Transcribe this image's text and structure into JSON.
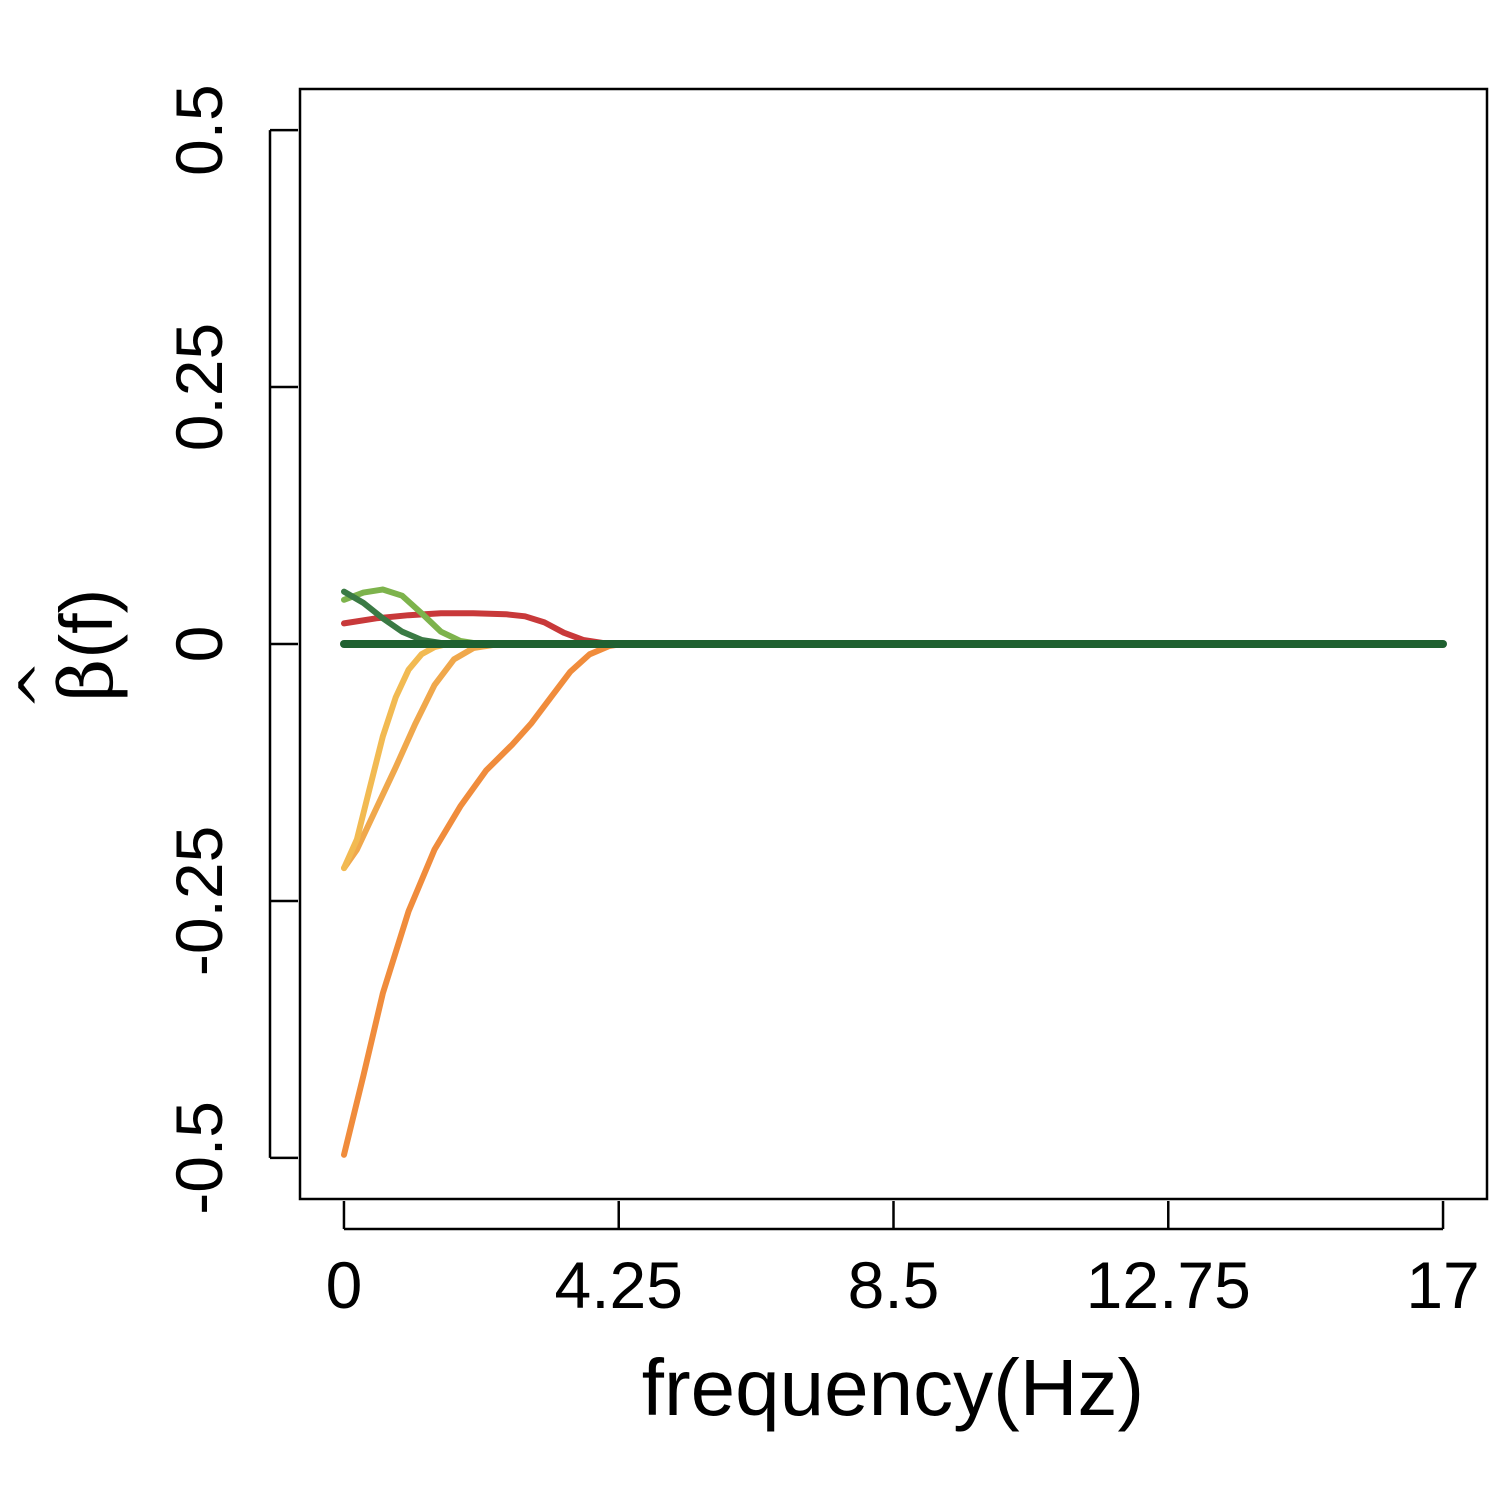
{
  "chart_data": {
    "type": "line",
    "xlabel": "frequency(Hz)",
    "ylabel": {
      "symbol": "β",
      "hat": "^",
      "arg": "(f)"
    },
    "xlim": [
      -0.68,
      17.68
    ],
    "ylim": [
      -0.54,
      0.54
    ],
    "x_ticks": [
      0,
      4.25,
      8.5,
      12.75,
      17
    ],
    "x_tick_labels": [
      "0",
      "4.25",
      "8.5",
      "12.75",
      "17"
    ],
    "y_ticks": [
      -0.5,
      -0.25,
      0,
      0.25,
      0.5
    ],
    "y_tick_labels": [
      "-0.5",
      "-0.25",
      "0",
      "0.25",
      "0.5"
    ],
    "grid": false,
    "legend": "none",
    "series": [
      {
        "color": "#f08c3c",
        "x": [
          0,
          0.3,
          0.6,
          1.0,
          1.4,
          1.8,
          2.2,
          2.6,
          2.9,
          3.2,
          3.5,
          3.8,
          4.1,
          4.3,
          5,
          17
        ],
        "y": [
          -0.497,
          -0.42,
          -0.34,
          -0.26,
          -0.2,
          -0.158,
          -0.123,
          -0.098,
          -0.077,
          -0.052,
          -0.027,
          -0.01,
          -0.002,
          0.0,
          0.0,
          0.0
        ]
      },
      {
        "color": "#f0a84c",
        "x": [
          0,
          0.2,
          0.5,
          0.8,
          1.1,
          1.4,
          1.7,
          2.0,
          2.3,
          2.6,
          3,
          17
        ],
        "y": [
          -0.218,
          -0.2,
          -0.16,
          -0.12,
          -0.078,
          -0.04,
          -0.015,
          -0.004,
          -0.001,
          0.0,
          0.0,
          0.0
        ]
      },
      {
        "color": "#f2ba52",
        "x": [
          0,
          0.2,
          0.4,
          0.6,
          0.8,
          1.0,
          1.2,
          1.4,
          1.6,
          1.8,
          2.2,
          17
        ],
        "y": [
          -0.218,
          -0.19,
          -0.14,
          -0.09,
          -0.052,
          -0.025,
          -0.01,
          -0.003,
          0.0,
          0.0,
          0.0,
          0.0
        ]
      },
      {
        "color": "#c8393a",
        "x": [
          0,
          0.5,
          1.0,
          1.5,
          2.0,
          2.5,
          2.8,
          3.1,
          3.4,
          3.7,
          4.0,
          4.3,
          17
        ],
        "y": [
          0.02,
          0.025,
          0.028,
          0.03,
          0.03,
          0.029,
          0.027,
          0.021,
          0.011,
          0.004,
          0.001,
          0.0,
          0.0
        ]
      },
      {
        "color": "#7db34c",
        "x": [
          0,
          0.3,
          0.6,
          0.9,
          1.2,
          1.5,
          1.8,
          2.1,
          2.4,
          17
        ],
        "y": [
          0.043,
          0.05,
          0.053,
          0.047,
          0.03,
          0.012,
          0.003,
          0.0,
          0.0,
          0.0
        ]
      },
      {
        "color": "#3a7a44",
        "x": [
          0,
          0.3,
          0.6,
          0.9,
          1.2,
          1.5,
          1.8,
          17
        ],
        "y": [
          0.051,
          0.04,
          0.025,
          0.012,
          0.004,
          0.001,
          0.0,
          0.0
        ]
      },
      {
        "color": "#1f6030",
        "x": [
          0,
          17
        ],
        "y": [
          0.0,
          0.0
        ]
      }
    ]
  }
}
